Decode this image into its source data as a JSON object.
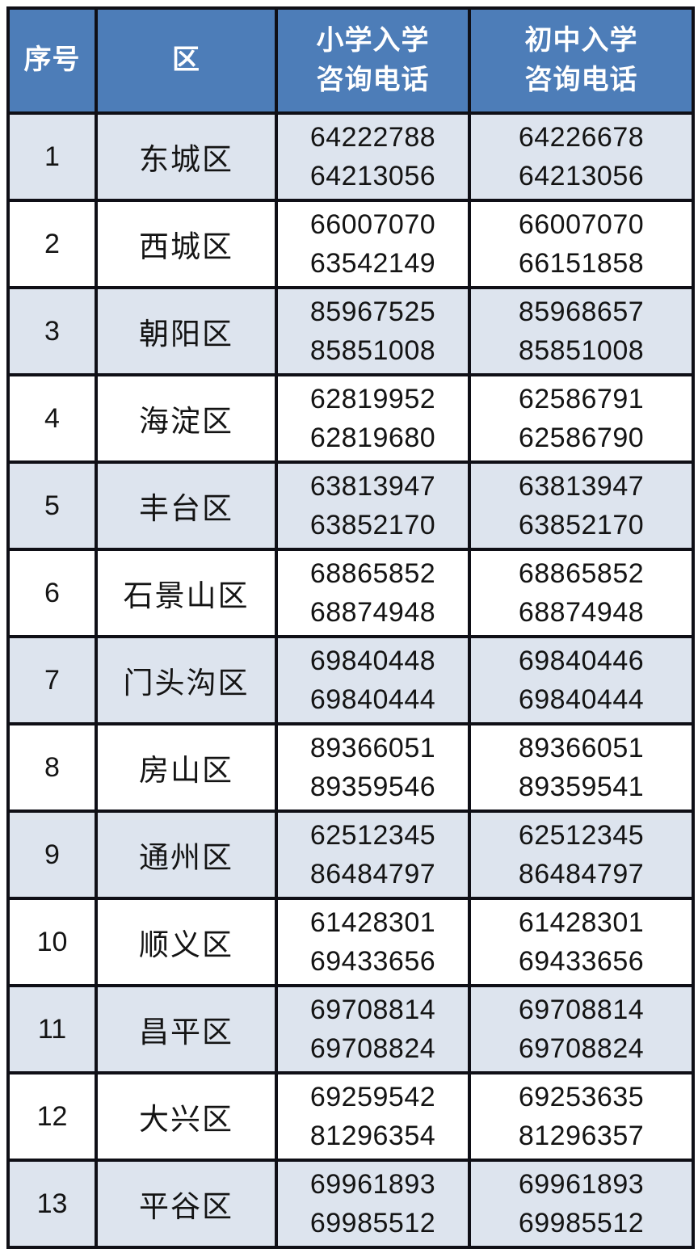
{
  "colors": {
    "header_bg": "#4d7db8",
    "row_alt_bg": "#dde4ee",
    "row_bg": "#ffffff",
    "border_color": "#0f0f16",
    "header_text": "#ffffff",
    "body_text": "#141414"
  },
  "table": {
    "headers": {
      "seq": "序号",
      "district": "区",
      "primary": "小学入学\n咨询电话",
      "middle": "初中入学\n咨询电话"
    },
    "rows": [
      {
        "seq": "1",
        "district": "东城区",
        "primary_phones": [
          "64222788",
          "64213056"
        ],
        "middle_phones": [
          "64226678",
          "64213056"
        ]
      },
      {
        "seq": "2",
        "district": "西城区",
        "primary_phones": [
          "66007070",
          "63542149"
        ],
        "middle_phones": [
          "66007070",
          "66151858"
        ]
      },
      {
        "seq": "3",
        "district": "朝阳区",
        "primary_phones": [
          "85967525",
          "85851008"
        ],
        "middle_phones": [
          "85968657",
          "85851008"
        ]
      },
      {
        "seq": "4",
        "district": "海淀区",
        "primary_phones": [
          "62819952",
          "62819680"
        ],
        "middle_phones": [
          "62586791",
          "62586790"
        ]
      },
      {
        "seq": "5",
        "district": "丰台区",
        "primary_phones": [
          "63813947",
          "63852170"
        ],
        "middle_phones": [
          "63813947",
          "63852170"
        ]
      },
      {
        "seq": "6",
        "district": "石景山区",
        "primary_phones": [
          "68865852",
          "68874948"
        ],
        "middle_phones": [
          "68865852",
          "68874948"
        ]
      },
      {
        "seq": "7",
        "district": "门头沟区",
        "primary_phones": [
          "69840448",
          "69840444"
        ],
        "middle_phones": [
          "69840446",
          "69840444"
        ]
      },
      {
        "seq": "8",
        "district": "房山区",
        "primary_phones": [
          "89366051",
          "89359546"
        ],
        "middle_phones": [
          "89366051",
          "89359541"
        ]
      },
      {
        "seq": "9",
        "district": "通州区",
        "primary_phones": [
          "62512345",
          "86484797"
        ],
        "middle_phones": [
          "62512345",
          "86484797"
        ]
      },
      {
        "seq": "10",
        "district": "顺义区",
        "primary_phones": [
          "61428301",
          "69433656"
        ],
        "middle_phones": [
          "61428301",
          "69433656"
        ]
      },
      {
        "seq": "11",
        "district": "昌平区",
        "primary_phones": [
          "69708814",
          "69708824"
        ],
        "middle_phones": [
          "69708814",
          "69708824"
        ]
      },
      {
        "seq": "12",
        "district": "大兴区",
        "primary_phones": [
          "69259542",
          "81296354"
        ],
        "middle_phones": [
          "69253635",
          "81296357"
        ]
      },
      {
        "seq": "13",
        "district": "平谷区",
        "primary_phones": [
          "69961893",
          "69985512"
        ],
        "middle_phones": [
          "69961893",
          "69985512"
        ]
      }
    ]
  }
}
